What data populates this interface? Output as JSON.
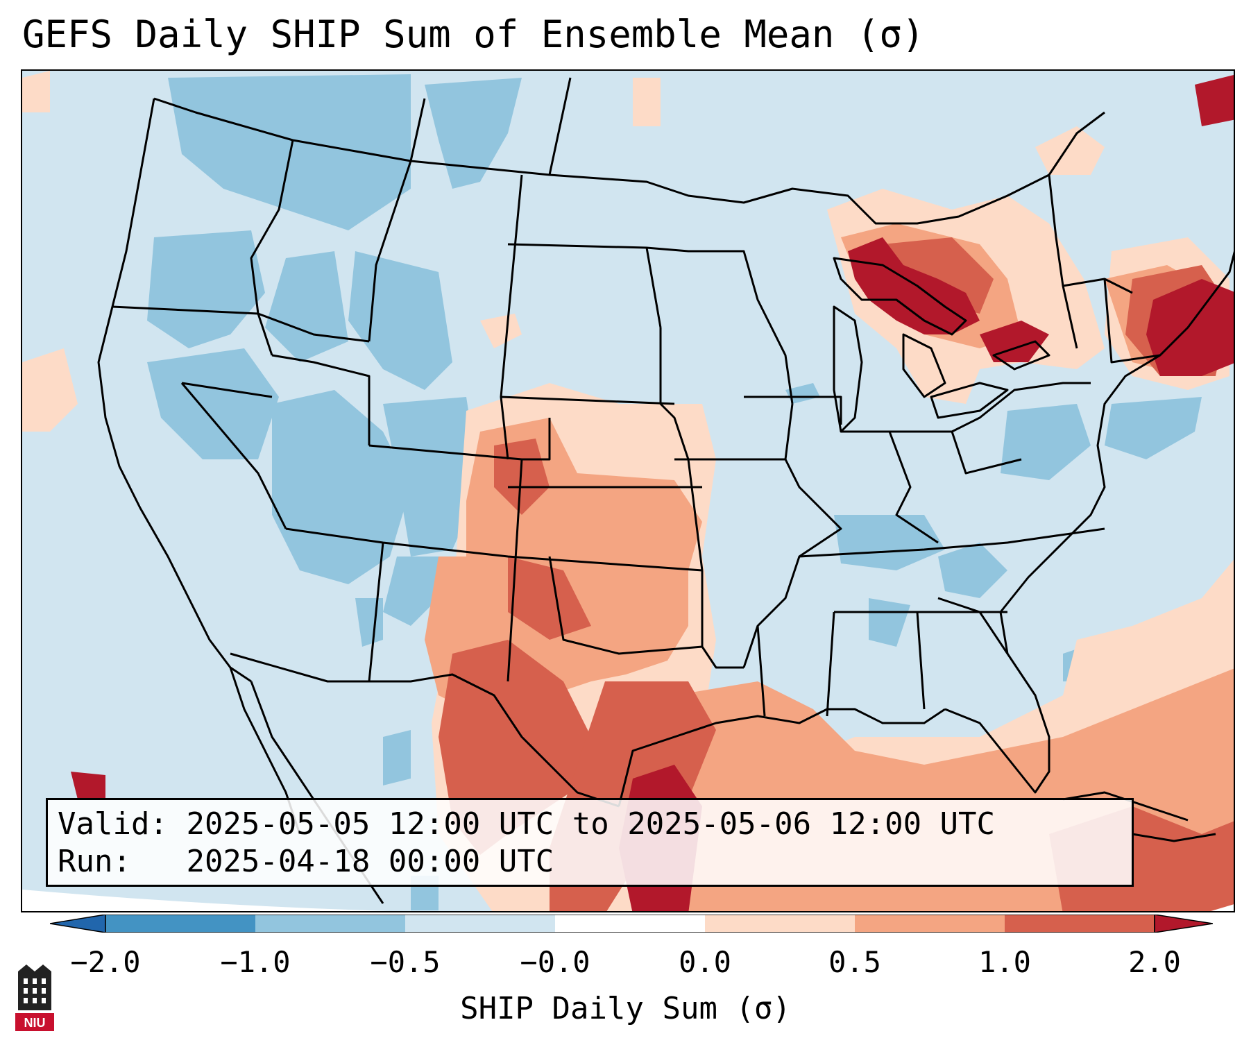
{
  "title": "GEFS Daily SHIP Sum of Ensemble Mean (σ)",
  "info": {
    "valid_label": "Valid:",
    "valid_value": "2025-05-05 12:00 UTC to 2025-05-06 12:00 UTC",
    "run_label": "Run:",
    "run_value": "2025-04-18 00:00 UTC"
  },
  "colorbar": {
    "label": "SHIP Daily Sum (σ)",
    "ticks": [
      "−2.0",
      "−1.0",
      "−0.5",
      "−0.0",
      "0.0",
      "0.5",
      "1.0",
      "2.0"
    ],
    "colors": [
      "#2166ac",
      "#4393c3",
      "#92c5de",
      "#d1e5f0",
      "#fddbc7",
      "#f4a582",
      "#d6604d",
      "#b2182b"
    ],
    "extend": "both"
  },
  "logo": {
    "text": "NIU",
    "icon": "niu-logo-icon"
  }
}
